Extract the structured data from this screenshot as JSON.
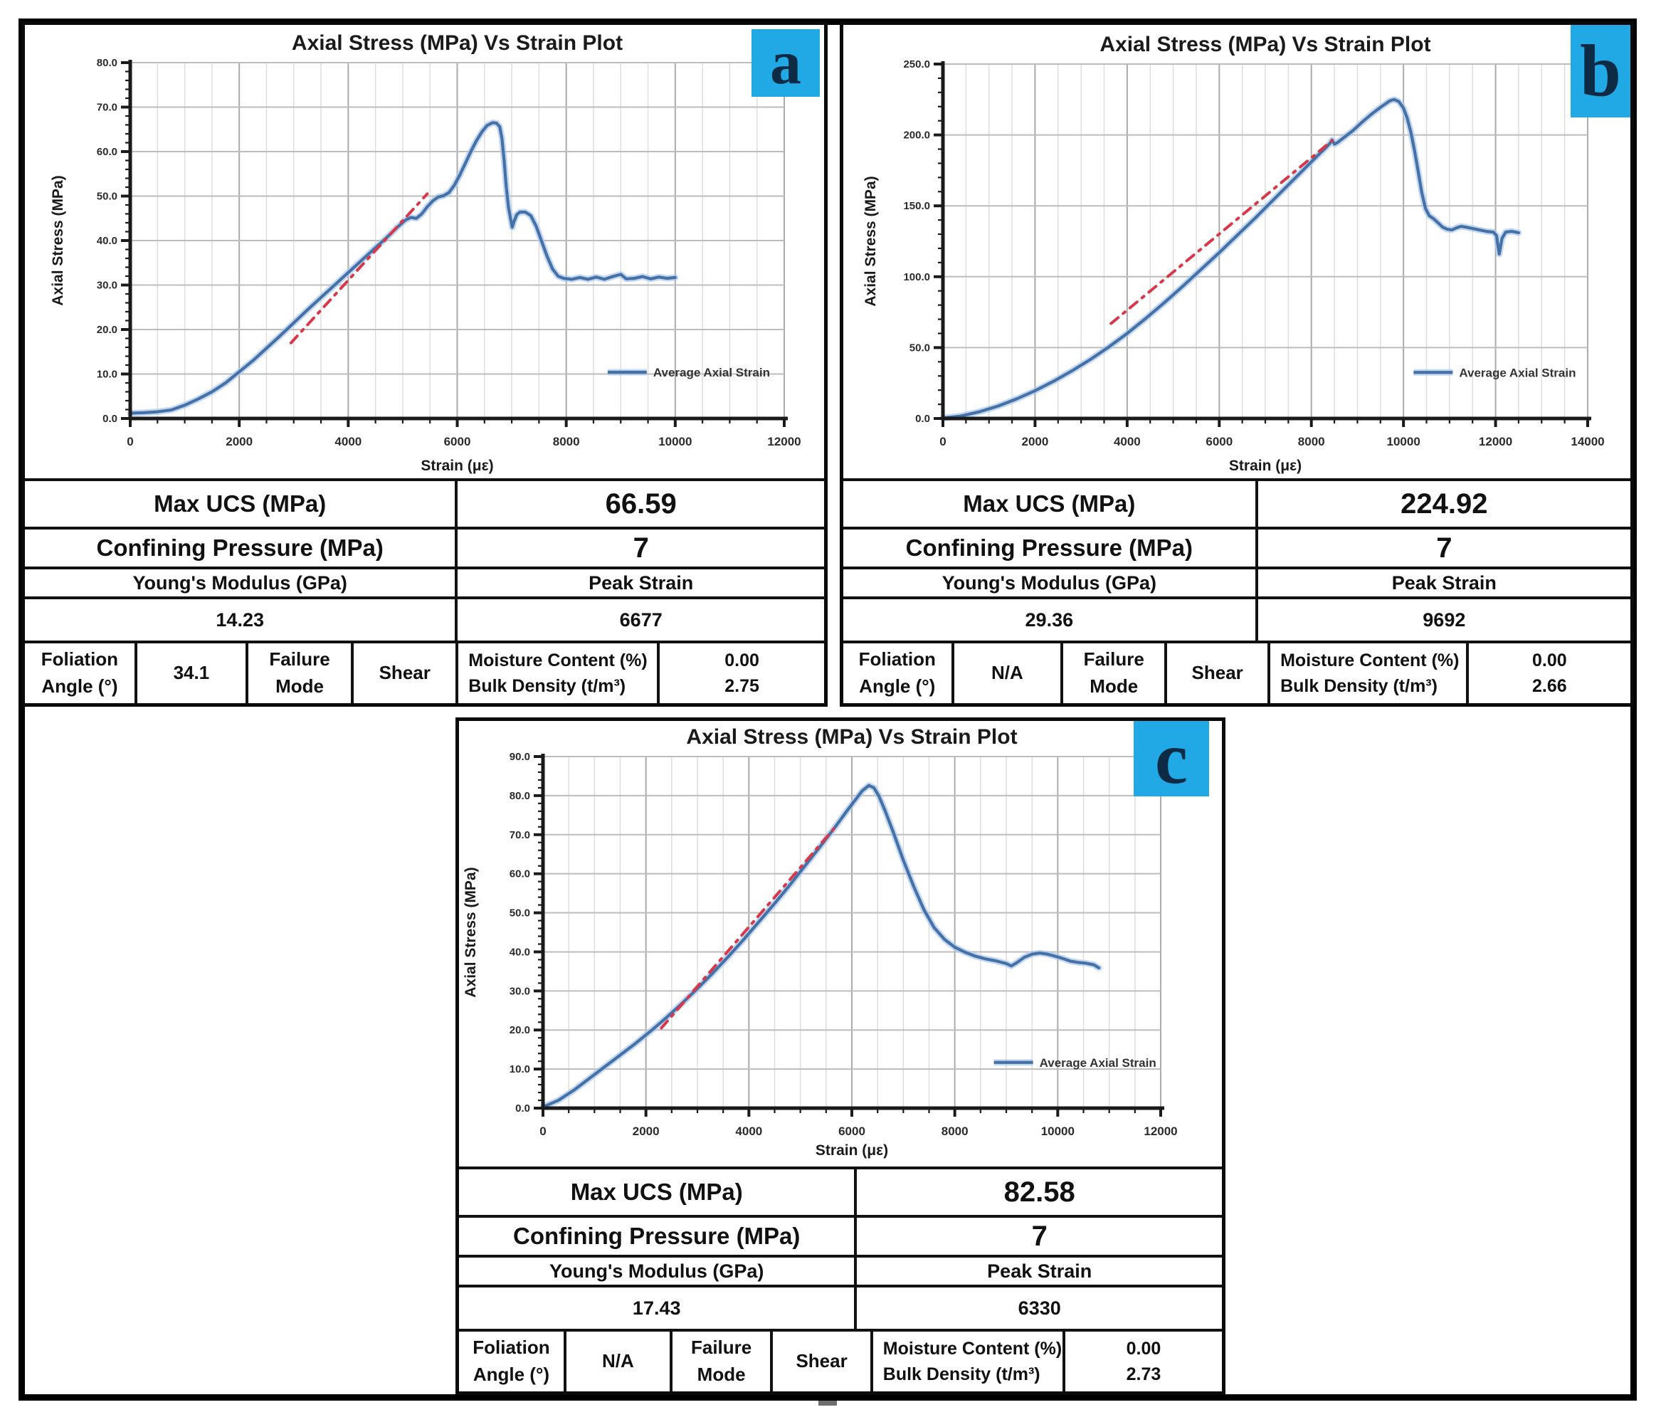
{
  "colors": {
    "panel_label_bg": "#21A9E6",
    "panel_label_text": "#0E2B45",
    "curve_blue": "#4472A8",
    "curve_halo": "#ADC8E8",
    "fit_red": "#D8384A",
    "grid_minor": "#DCDCDC",
    "grid_major": "#ABABAB",
    "grid_h": "#BDBDBD",
    "axis": "#1A1A1A"
  },
  "panels": [
    {
      "label": "a",
      "table": {
        "max_ucs_label": "Max UCS (MPa)",
        "max_ucs_value": "66.59",
        "confining_label": "Confining Pressure (MPa)",
        "confining_value": "7",
        "youngs_label": "Young's Modulus (GPa)",
        "youngs_value": "14.23",
        "peak_strain_label": "Peak Strain",
        "peak_strain_value": "6677",
        "foliation_label": "Foliation Angle (°)",
        "foliation_value": "34.1",
        "failure_label": "Failure Mode",
        "failure_value": "Shear",
        "moisture_label": "Moisture Content (%)",
        "moisture_value": "0.00",
        "density_label": "Bulk Density (t/m³)",
        "density_value": "2.75"
      }
    },
    {
      "label": "b",
      "table": {
        "max_ucs_label": "Max UCS (MPa)",
        "max_ucs_value": "224.92",
        "confining_label": "Confining Pressure (MPa)",
        "confining_value": "7",
        "youngs_label": "Young's Modulus (GPa)",
        "youngs_value": "29.36",
        "peak_strain_label": "Peak Strain",
        "peak_strain_value": "9692",
        "foliation_label": "Foliation Angle (°)",
        "foliation_value": "N/A",
        "failure_label": "Failure Mode",
        "failure_value": "Shear",
        "moisture_label": "Moisture Content (%)",
        "moisture_value": "0.00",
        "density_label": "Bulk Density (t/m³)",
        "density_value": "2.66"
      }
    },
    {
      "label": "c",
      "table": {
        "max_ucs_label": "Max UCS (MPa)",
        "max_ucs_value": "82.58",
        "confining_label": "Confining Pressure (MPa)",
        "confining_value": "7",
        "youngs_label": "Young's Modulus (GPa)",
        "youngs_value": "17.43",
        "peak_strain_label": "Peak Strain",
        "peak_strain_value": "6330",
        "foliation_label": "Foliation Angle (°)",
        "foliation_value": "N/A",
        "failure_label": "Failure Mode",
        "failure_value": "Shear",
        "moisture_label": "Moisture Content (%)",
        "moisture_value": "0.00",
        "density_label": "Bulk Density (t/m³)",
        "density_value": "2.73"
      }
    }
  ],
  "chart_data": [
    {
      "type": "line",
      "title": "Axial Stress (MPa) Vs Strain Plot",
      "xlabel": "Strain (με)",
      "ylabel": "Axial Stress (MPa)",
      "xlim": [
        0,
        12000
      ],
      "xstep": 2000,
      "x_minor": 500,
      "ylim": [
        0,
        80
      ],
      "ystep": 10,
      "y_minor": 2,
      "legend": "Average Axial Strain",
      "legend_pos": [
        0.73,
        0.13
      ],
      "grid": true,
      "series": [
        [
          0,
          1.2
        ],
        [
          250,
          1.3
        ],
        [
          500,
          1.5
        ],
        [
          750,
          1.9
        ],
        [
          1000,
          3
        ],
        [
          1250,
          4.4
        ],
        [
          1500,
          6
        ],
        [
          1750,
          8
        ],
        [
          2000,
          10.5
        ],
        [
          2250,
          13
        ],
        [
          2500,
          15.8
        ],
        [
          2750,
          18.6
        ],
        [
          3000,
          21.5
        ],
        [
          3250,
          24.4
        ],
        [
          3500,
          27.2
        ],
        [
          3750,
          30
        ],
        [
          4000,
          32.8
        ],
        [
          4250,
          35.6
        ],
        [
          4500,
          38.4
        ],
        [
          4700,
          40.6
        ],
        [
          4900,
          43
        ],
        [
          5050,
          44.6
        ],
        [
          5150,
          45.2
        ],
        [
          5250,
          45
        ],
        [
          5350,
          46
        ],
        [
          5450,
          47.6
        ],
        [
          5550,
          48.9
        ],
        [
          5650,
          49.8
        ],
        [
          5750,
          50.1
        ],
        [
          5850,
          50.8
        ],
        [
          5950,
          52.5
        ],
        [
          6050,
          54.8
        ],
        [
          6150,
          57.4
        ],
        [
          6250,
          60
        ],
        [
          6350,
          62.4
        ],
        [
          6450,
          64.4
        ],
        [
          6550,
          65.9
        ],
        [
          6650,
          66.5
        ],
        [
          6720,
          66.4
        ],
        [
          6780,
          65.6
        ],
        [
          6820,
          63
        ],
        [
          6860,
          58
        ],
        [
          6900,
          52
        ],
        [
          6940,
          47.5
        ],
        [
          6980,
          44.8
        ],
        [
          7010,
          43
        ],
        [
          7040,
          44.2
        ],
        [
          7090,
          45.8
        ],
        [
          7150,
          46.4
        ],
        [
          7250,
          46.4
        ],
        [
          7350,
          45.6
        ],
        [
          7450,
          43.2
        ],
        [
          7550,
          39.8
        ],
        [
          7650,
          36.4
        ],
        [
          7750,
          33.6
        ],
        [
          7850,
          32
        ],
        [
          7950,
          31.5
        ],
        [
          8100,
          31.3
        ],
        [
          8250,
          31.7
        ],
        [
          8400,
          31.3
        ],
        [
          8550,
          31.8
        ],
        [
          8700,
          31.3
        ],
        [
          8850,
          31.9
        ],
        [
          9000,
          32.4
        ],
        [
          9100,
          31.4
        ],
        [
          9250,
          31.5
        ],
        [
          9400,
          31.9
        ],
        [
          9550,
          31.4
        ],
        [
          9700,
          31.8
        ],
        [
          9850,
          31.5
        ],
        [
          10000,
          31.7
        ]
      ],
      "fit_line": [
        [
          2950,
          17
        ],
        [
          5450,
          50.5
        ]
      ],
      "peak": {
        "strain": 6677,
        "stress": 66.59
      }
    },
    {
      "type": "line",
      "title": "Axial Stress (MPa) Vs Strain Plot",
      "xlabel": "Strain (με)",
      "ylabel": "Axial Stress (MPa)",
      "xlim": [
        0,
        14000
      ],
      "xstep": 2000,
      "x_minor": 500,
      "ylim": [
        0,
        250
      ],
      "ystep": 50,
      "y_minor": 10,
      "legend": "Average Axial Strain",
      "legend_pos": [
        0.73,
        0.13
      ],
      "grid": true,
      "series": [
        [
          0,
          0.3
        ],
        [
          400,
          1.8
        ],
        [
          800,
          4.8
        ],
        [
          1200,
          8.8
        ],
        [
          1600,
          13.8
        ],
        [
          2000,
          19.6
        ],
        [
          2400,
          26.2
        ],
        [
          2800,
          33.6
        ],
        [
          3200,
          41.6
        ],
        [
          3600,
          50.4
        ],
        [
          4000,
          60
        ],
        [
          4400,
          70.5
        ],
        [
          4800,
          81.5
        ],
        [
          5200,
          93
        ],
        [
          5600,
          105
        ],
        [
          6000,
          117
        ],
        [
          6400,
          129.5
        ],
        [
          6800,
          142
        ],
        [
          7200,
          155
        ],
        [
          7600,
          168
        ],
        [
          8000,
          181
        ],
        [
          8200,
          187.5
        ],
        [
          8330,
          191.5
        ],
        [
          8400,
          194
        ],
        [
          8450,
          196.5
        ],
        [
          8500,
          193.5
        ],
        [
          8560,
          194.5
        ],
        [
          8700,
          198
        ],
        [
          8900,
          203
        ],
        [
          9100,
          209
        ],
        [
          9300,
          214.5
        ],
        [
          9500,
          219.5
        ],
        [
          9700,
          224
        ],
        [
          9800,
          225
        ],
        [
          9900,
          223.5
        ],
        [
          10000,
          219
        ],
        [
          10080,
          212
        ],
        [
          10160,
          202
        ],
        [
          10240,
          189
        ],
        [
          10320,
          174
        ],
        [
          10400,
          159
        ],
        [
          10480,
          148
        ],
        [
          10560,
          143
        ],
        [
          10650,
          141
        ],
        [
          10750,
          138
        ],
        [
          10850,
          135
        ],
        [
          10950,
          133.5
        ],
        [
          11050,
          133
        ],
        [
          11150,
          134.5
        ],
        [
          11250,
          135.5
        ],
        [
          11350,
          135
        ],
        [
          11500,
          134
        ],
        [
          11650,
          133
        ],
        [
          11800,
          132
        ],
        [
          11950,
          131.5
        ],
        [
          12020,
          129
        ],
        [
          12080,
          116
        ],
        [
          12140,
          127
        ],
        [
          12220,
          131.5
        ],
        [
          12350,
          132
        ],
        [
          12500,
          131
        ]
      ],
      "fit_line": [
        [
          3650,
          67
        ],
        [
          8450,
          196
        ]
      ],
      "peak": {
        "strain": 9692,
        "stress": 224.92
      }
    },
    {
      "type": "line",
      "title": "Axial Stress (MPa) Vs Strain Plot",
      "xlabel": "Strain (με)",
      "ylabel": "Axial Stress (MPa)",
      "xlim": [
        0,
        12000
      ],
      "xstep": 2000,
      "x_minor": 500,
      "ylim": [
        0,
        90
      ],
      "ystep": 10,
      "y_minor": 2,
      "legend": "Average Axial Strain",
      "legend_pos": [
        0.73,
        0.13
      ],
      "grid": true,
      "series": [
        [
          0,
          0.3
        ],
        [
          300,
          2
        ],
        [
          600,
          4.6
        ],
        [
          900,
          7.6
        ],
        [
          1200,
          10.6
        ],
        [
          1500,
          13.6
        ],
        [
          1800,
          16.6
        ],
        [
          2100,
          19.8
        ],
        [
          2400,
          23.2
        ],
        [
          2700,
          26.8
        ],
        [
          3000,
          30.6
        ],
        [
          3300,
          34.6
        ],
        [
          3600,
          38.8
        ],
        [
          3900,
          43.2
        ],
        [
          4200,
          47.8
        ],
        [
          4500,
          52.4
        ],
        [
          4800,
          57.2
        ],
        [
          5100,
          62.2
        ],
        [
          5400,
          67.2
        ],
        [
          5700,
          72.4
        ],
        [
          5900,
          76
        ],
        [
          6050,
          78.6
        ],
        [
          6200,
          81.2
        ],
        [
          6330,
          82.6
        ],
        [
          6430,
          82
        ],
        [
          6530,
          79.8
        ],
        [
          6650,
          76
        ],
        [
          6800,
          70.8
        ],
        [
          7000,
          63.5
        ],
        [
          7200,
          56.8
        ],
        [
          7400,
          50.8
        ],
        [
          7600,
          46.2
        ],
        [
          7800,
          43.2
        ],
        [
          8000,
          41.2
        ],
        [
          8200,
          39.9
        ],
        [
          8400,
          38.9
        ],
        [
          8600,
          38.2
        ],
        [
          8800,
          37.7
        ],
        [
          9000,
          37
        ],
        [
          9100,
          36.4
        ],
        [
          9200,
          37.2
        ],
        [
          9350,
          38.6
        ],
        [
          9500,
          39.4
        ],
        [
          9650,
          39.7
        ],
        [
          9800,
          39.4
        ],
        [
          9950,
          38.9
        ],
        [
          10100,
          38.3
        ],
        [
          10250,
          37.6
        ],
        [
          10400,
          37.3
        ],
        [
          10550,
          37.1
        ],
        [
          10700,
          36.7
        ],
        [
          10800,
          35.9
        ]
      ],
      "fit_line": [
        [
          2300,
          20.5
        ],
        [
          5650,
          71.5
        ]
      ],
      "peak": {
        "strain": 6330,
        "stress": 82.58
      }
    }
  ]
}
